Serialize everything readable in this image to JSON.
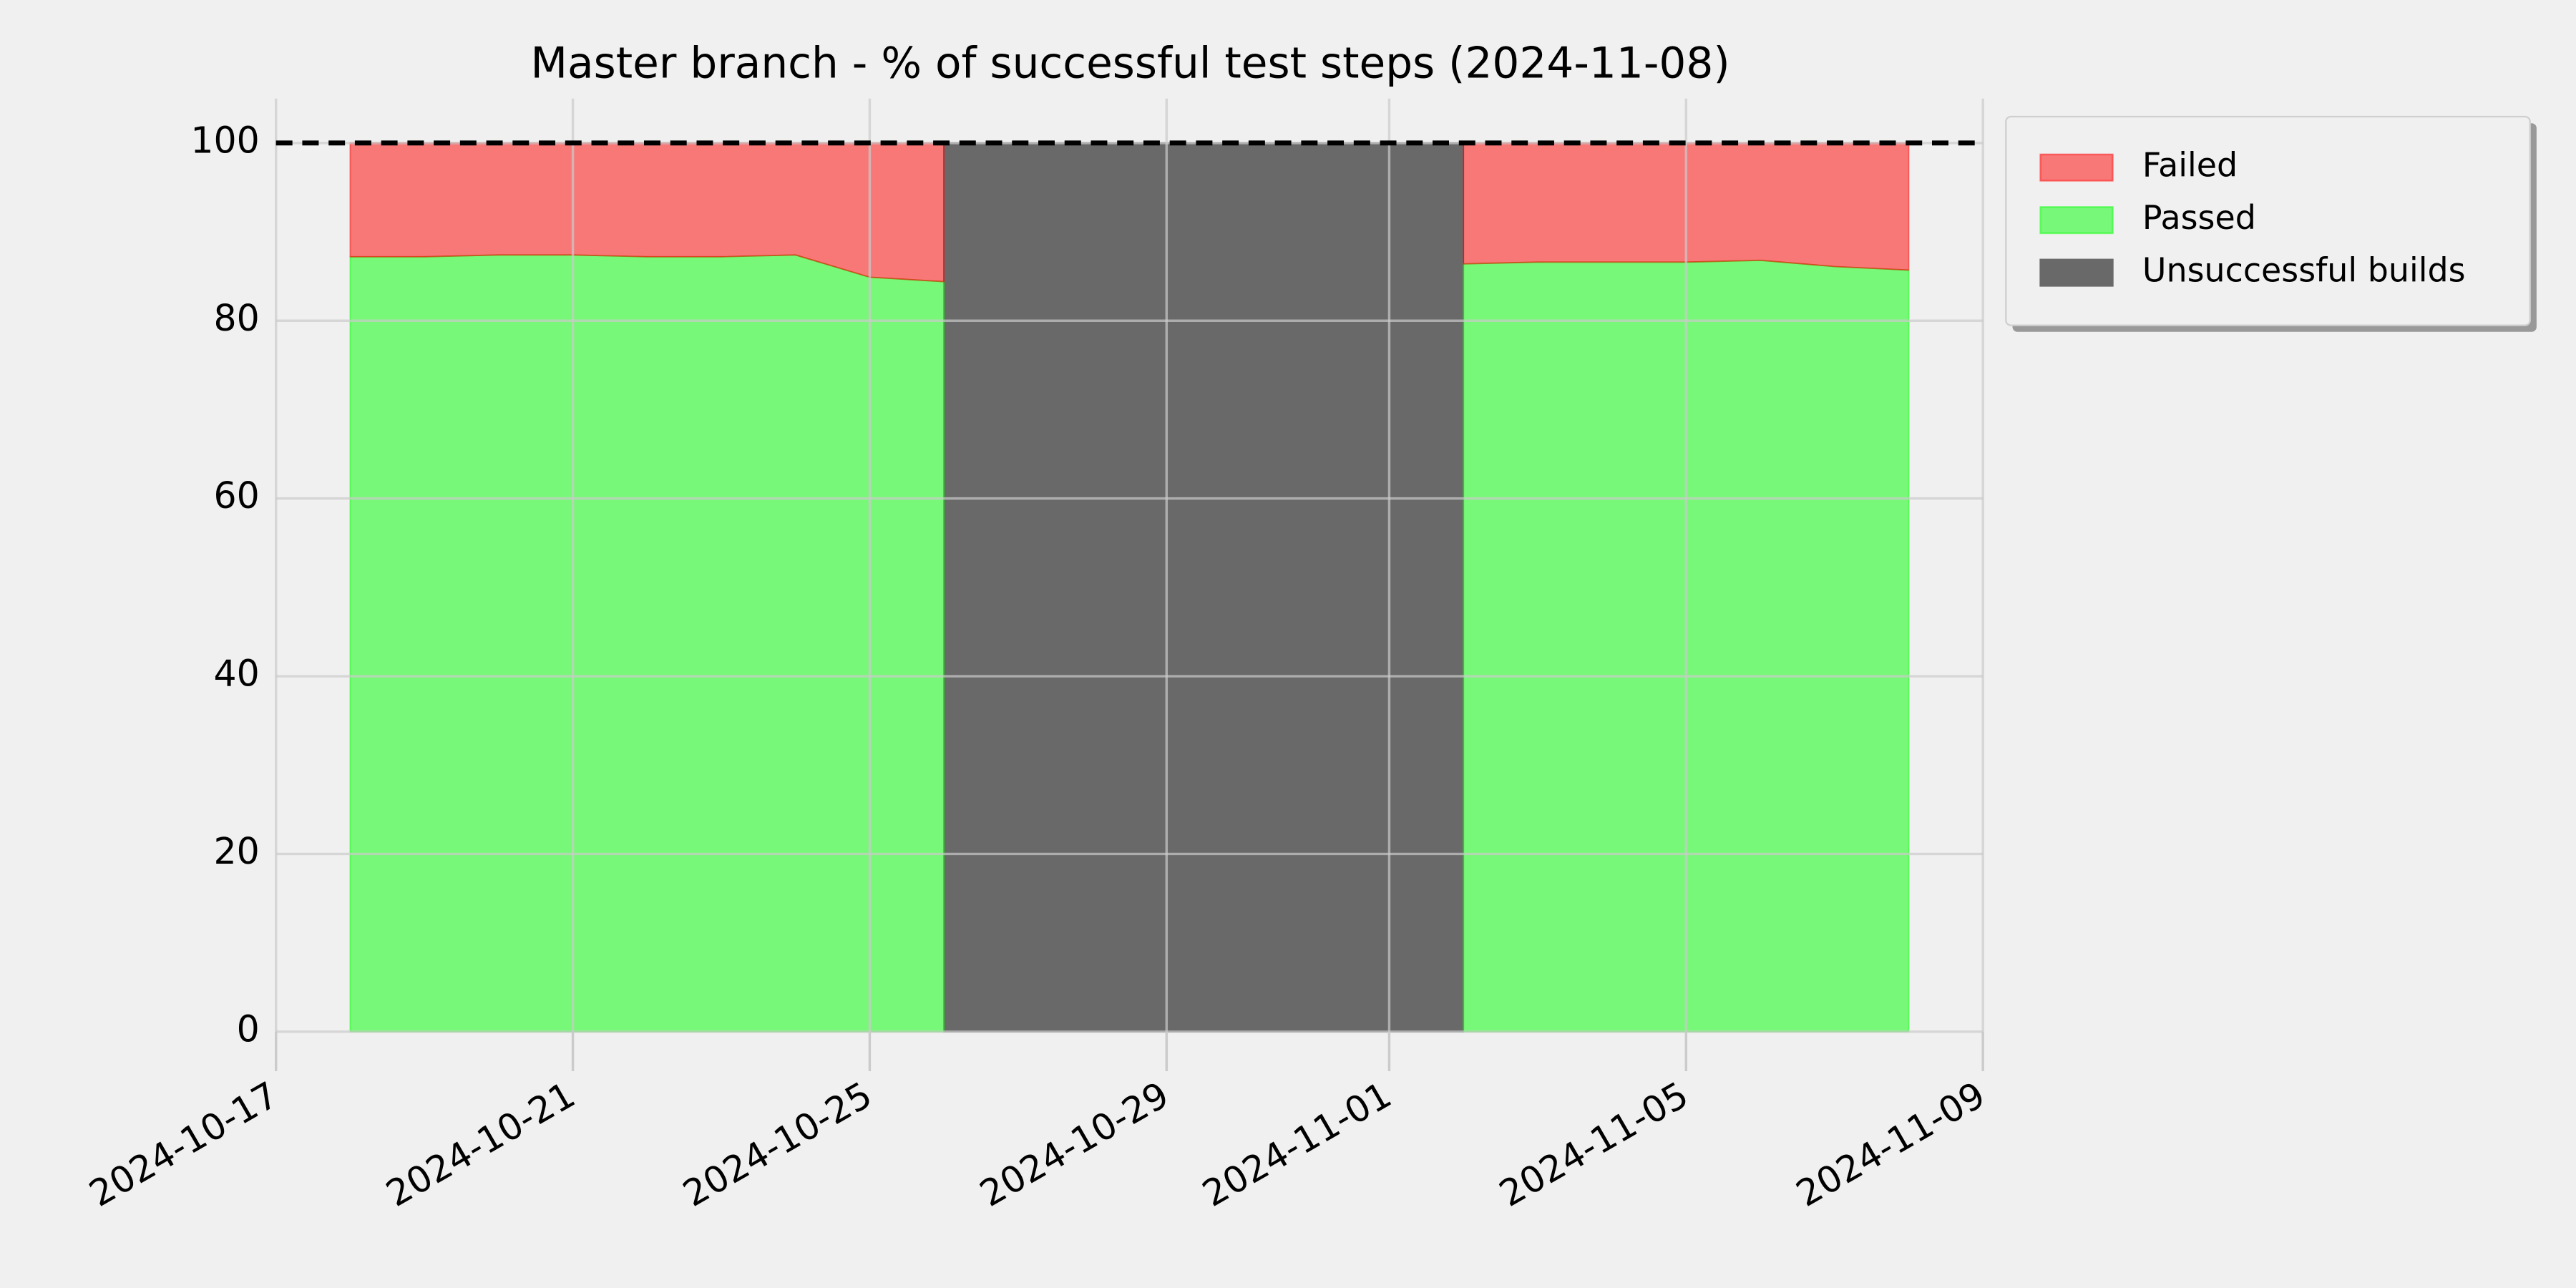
{
  "chart_data": {
    "type": "area",
    "title": "Master branch - % of successful test steps (2024-11-08)",
    "x": [
      "2024-10-18",
      "2024-10-19",
      "2024-10-20",
      "2024-10-21",
      "2024-10-22",
      "2024-10-23",
      "2024-10-24",
      "2024-10-25",
      "2024-10-26",
      "2024-10-27",
      "2024-10-28",
      "2024-10-29",
      "2024-10-30",
      "2024-10-31",
      "2024-11-01",
      "2024-11-02",
      "2024-11-03",
      "2024-11-04",
      "2024-11-05",
      "2024-11-06",
      "2024-11-07",
      "2024-11-08"
    ],
    "series": [
      {
        "name": "Failed",
        "color": "#ff0000",
        "alpha": 0.5,
        "stack": true,
        "values": [
          12.8,
          12.8,
          12.6,
          12.6,
          12.8,
          12.8,
          12.6,
          15.1,
          15.6,
          null,
          null,
          null,
          null,
          null,
          null,
          13.6,
          13.4,
          13.4,
          13.4,
          13.2,
          13.9,
          14.3
        ]
      },
      {
        "name": "Passed",
        "color": "#00ff00",
        "alpha": 0.5,
        "stack": true,
        "values": [
          87.2,
          87.2,
          87.4,
          87.4,
          87.2,
          87.2,
          87.4,
          84.9,
          84.4,
          null,
          null,
          null,
          null,
          null,
          null,
          86.4,
          86.6,
          86.6,
          86.6,
          86.8,
          86.1,
          85.7
        ]
      },
      {
        "name": "Unsuccessful builds",
        "color": "#696969",
        "alpha": 1,
        "stack": false,
        "values": [
          null,
          null,
          null,
          null,
          null,
          null,
          null,
          null,
          100,
          100,
          100,
          100,
          100,
          100,
          100,
          100,
          null,
          null,
          null,
          null,
          null,
          null
        ]
      }
    ],
    "hline": 100,
    "xlim": [
      "2024-10-17",
      "2024-11-09"
    ],
    "xticks": [
      "2024-10-17",
      "2024-10-21",
      "2024-10-25",
      "2024-10-29",
      "2024-11-01",
      "2024-11-05",
      "2024-11-09"
    ],
    "ylim": [
      0,
      105
    ],
    "yticks": [
      0,
      20,
      40,
      60,
      80,
      100
    ],
    "grid": true,
    "legend": "outside upper right"
  }
}
